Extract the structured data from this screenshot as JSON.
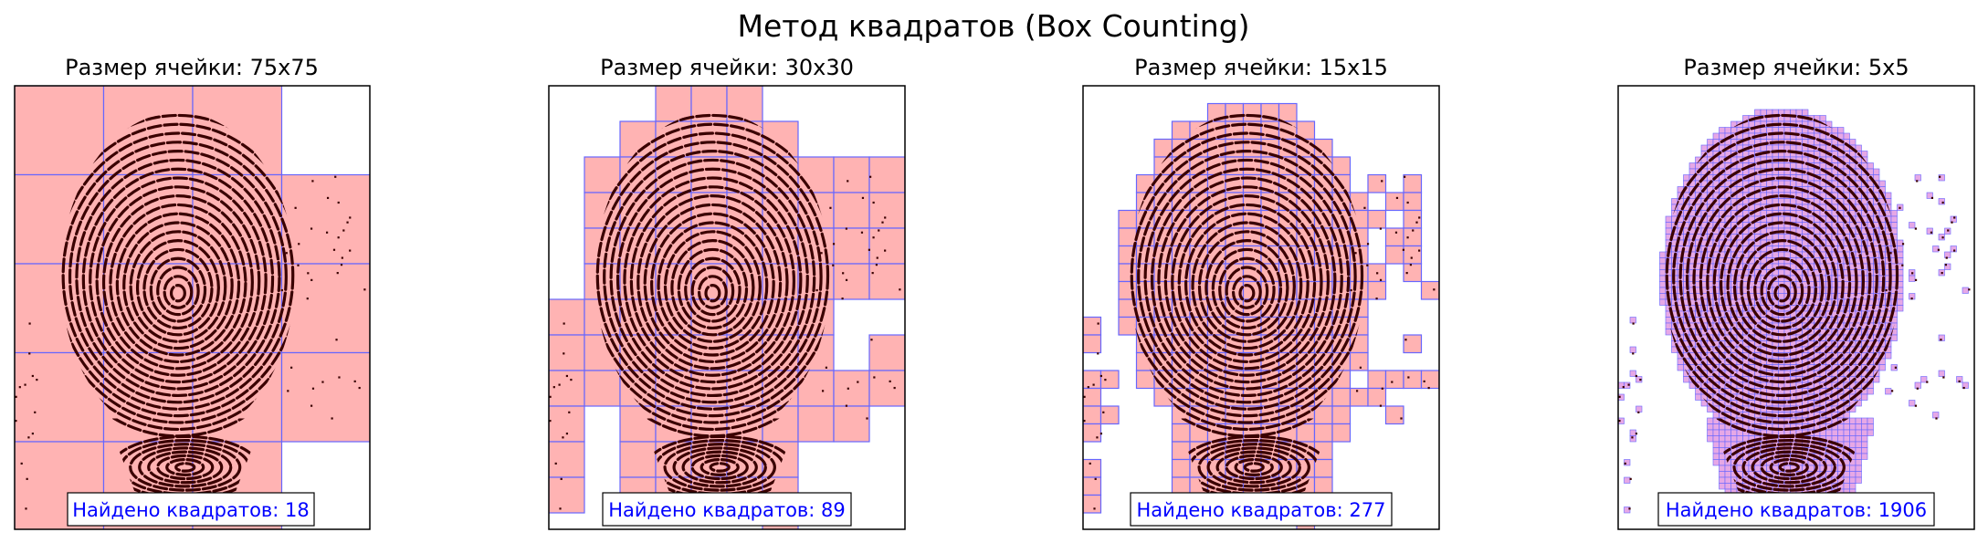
{
  "figure": {
    "title": "Метод квадратов (Box Counting)"
  },
  "colors": {
    "box_fill": "#ffb3b3",
    "box_fill_fine": "#e6a8e6",
    "grid_line": "#6666ff",
    "fingerprint": "#3a0000",
    "count_text": "#0000ff"
  },
  "chart_data": [
    {
      "type": "image",
      "title": "Размер ячейки: 75x75",
      "cell_size": 75,
      "annotation": "Найдено квадратов: 18",
      "box_count": 18
    },
    {
      "type": "image",
      "title": "Размер ячейки: 30x30",
      "cell_size": 30,
      "annotation": "Найдено квадратов: 89",
      "box_count": 89
    },
    {
      "type": "image",
      "title": "Размер ячейки: 15x15",
      "cell_size": 15,
      "annotation": "Найдено квадратов: 277",
      "box_count": 277
    },
    {
      "type": "image",
      "title": "Размер ячейки: 5x5",
      "cell_size": 5,
      "annotation": "Найдено квадратов: 1906",
      "box_count": 1906
    }
  ]
}
